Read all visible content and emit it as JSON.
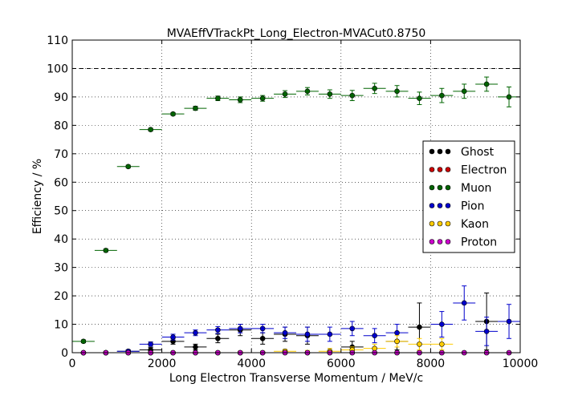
{
  "chart_data": {
    "type": "scatter",
    "title": "MVAEffVTrackPt_Long_Electron-MVACut0.8750",
    "xlabel": "Long Electron Transverse Momentum / MeV/c",
    "ylabel": "Efficiency / %",
    "xlim": [
      0,
      10000
    ],
    "ylim": [
      0,
      110
    ],
    "xticks": [
      "0",
      "2000",
      "4000",
      "6000",
      "8000",
      "10000"
    ],
    "yticks": [
      "0",
      "10",
      "20",
      "30",
      "40",
      "50",
      "60",
      "70",
      "80",
      "90",
      "100",
      "110"
    ],
    "grid": true,
    "reference_line": 100,
    "legend_position": "right",
    "bin_half_width": 250,
    "x": [
      250,
      750,
      1250,
      1750,
      2250,
      2750,
      3250,
      3750,
      4250,
      4750,
      5250,
      5750,
      6250,
      6750,
      7250,
      7750,
      8250,
      8750,
      9250,
      9750
    ],
    "series": [
      {
        "name": "Ghost",
        "color": "#000000",
        "values": [
          0,
          0,
          0.5,
          1,
          4,
          2,
          5,
          8,
          5,
          6.5,
          6,
          null,
          2,
          null,
          4,
          9,
          null,
          null,
          11,
          null
        ],
        "errors": [
          0.3,
          0.3,
          0.5,
          0.8,
          1,
          1,
          1.5,
          2,
          2,
          2.5,
          3,
          null,
          2,
          null,
          3,
          8.5,
          null,
          null,
          10,
          null
        ]
      },
      {
        "name": "Electron",
        "color": "#cc0000",
        "values": [
          0,
          0,
          0,
          0,
          0,
          0,
          0,
          0,
          0,
          0,
          0,
          0,
          0,
          0,
          0,
          0,
          0,
          0,
          0,
          0
        ],
        "errors": [
          0,
          0,
          0,
          0,
          0,
          0,
          0,
          0,
          0,
          0,
          0,
          0,
          0,
          0,
          0,
          0,
          0,
          0,
          0,
          0
        ]
      },
      {
        "name": "Muon",
        "color": "#006400",
        "values": [
          4,
          36,
          65.5,
          78.5,
          84,
          86,
          89.5,
          89,
          89.5,
          91,
          92,
          91,
          90.5,
          93,
          92,
          89.5,
          90.5,
          92,
          94.5,
          90
        ],
        "errors": [
          0.5,
          0.5,
          0.5,
          0.5,
          0.5,
          0.7,
          0.8,
          1,
          1,
          1.2,
          1.3,
          1.5,
          1.8,
          1.8,
          2,
          2.2,
          2.5,
          2.5,
          2.5,
          3.5
        ]
      },
      {
        "name": "Pion",
        "color": "#0000cc",
        "values": [
          0,
          0,
          0.5,
          3,
          5.5,
          7,
          8,
          8.5,
          8.5,
          7,
          6.5,
          6.5,
          8.5,
          6,
          7,
          null,
          10,
          17.5,
          7.5,
          11
        ],
        "errors": [
          0.3,
          0.3,
          0.5,
          0.8,
          1,
          1,
          1.2,
          1.5,
          1.5,
          2,
          2.5,
          2.5,
          2.5,
          2.5,
          3,
          null,
          4.5,
          6,
          5,
          6
        ]
      },
      {
        "name": "Kaon",
        "color": "#ffcc00",
        "values": [
          0,
          0,
          0,
          0,
          0,
          0,
          0,
          0,
          0,
          0.5,
          0,
          0.5,
          1,
          1.5,
          4,
          3,
          3,
          null,
          null,
          null
        ],
        "errors": [
          0.2,
          0.2,
          0.2,
          0.3,
          0.3,
          0.3,
          0.4,
          0.5,
          0.5,
          0.7,
          0.8,
          1,
          1,
          1.5,
          2,
          2,
          2,
          null,
          null,
          null
        ]
      },
      {
        "name": "Proton",
        "color": "#cc00cc",
        "values": [
          0,
          0,
          0,
          0,
          0,
          0,
          0,
          0,
          0,
          0,
          0,
          0,
          0,
          0,
          0,
          0,
          0,
          0,
          0,
          0
        ],
        "errors": [
          0,
          0,
          0,
          0,
          0,
          0,
          0,
          0,
          0,
          0,
          0,
          0,
          0,
          0,
          0,
          0,
          0,
          0,
          0,
          0
        ]
      }
    ]
  }
}
